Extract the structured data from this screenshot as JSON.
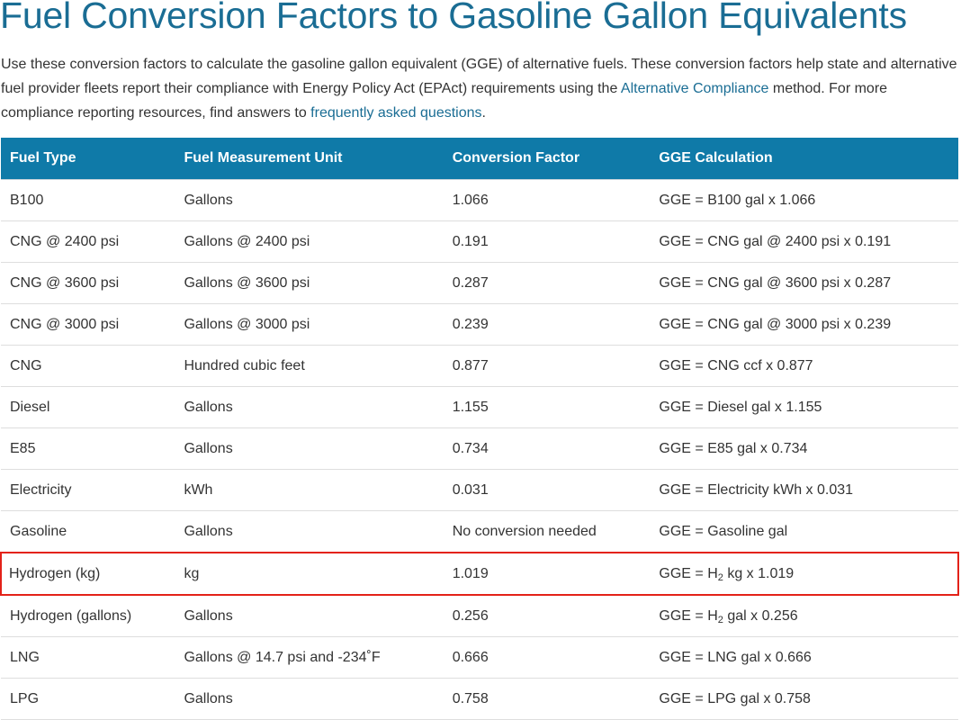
{
  "title": "Fuel Conversion Factors to Gasoline Gallon Equivalents",
  "intro": {
    "text1": "Use these conversion factors to calculate the gasoline gallon equivalent (GGE) of alternative fuels. These conversion factors help state and alternative fuel provider fleets report their compliance with Energy Policy Act (EPAct) requirements using the ",
    "link1": "Alternative Compliance",
    "text2": " method. For more compliance reporting resources, find answers to ",
    "link2": "frequently asked questions",
    "text3": "."
  },
  "table": {
    "headers": [
      "Fuel Type",
      "Fuel Measurement Unit",
      "Conversion Factor",
      "GGE Calculation"
    ],
    "rows": [
      {
        "fuel": "B100",
        "unit": "Gallons",
        "factor": "1.066",
        "calc": "GGE = B100 gal x 1.066"
      },
      {
        "fuel": "CNG @ 2400 psi",
        "unit": "Gallons @ 2400 psi",
        "factor": "0.191",
        "calc": "GGE = CNG gal @ 2400 psi x 0.191"
      },
      {
        "fuel": "CNG @ 3600 psi",
        "unit": "Gallons @ 3600 psi",
        "factor": "0.287",
        "calc": "GGE = CNG gal @ 3600 psi x 0.287"
      },
      {
        "fuel": "CNG @ 3000 psi",
        "unit": "Gallons @ 3000 psi",
        "factor": "0.239",
        "calc": "GGE = CNG gal @ 3000 psi x 0.239"
      },
      {
        "fuel": "CNG",
        "unit": "Hundred cubic feet",
        "factor": "0.877",
        "calc": "GGE = CNG ccf x 0.877"
      },
      {
        "fuel": "Diesel",
        "unit": "Gallons",
        "factor": "1.155",
        "calc": "GGE = Diesel gal x 1.155"
      },
      {
        "fuel": "E85",
        "unit": "Gallons",
        "factor": "0.734",
        "calc": "GGE = E85 gal x 0.734"
      },
      {
        "fuel": "Electricity",
        "unit": "kWh",
        "factor": "0.031",
        "calc": "GGE = Electricity kWh x 0.031"
      },
      {
        "fuel": "Gasoline",
        "unit": "Gallons",
        "factor": "No conversion needed",
        "calc": "GGE = Gasoline gal"
      },
      {
        "fuel": "Hydrogen (kg)",
        "unit": "kg",
        "factor": "1.019",
        "calc_pre": "GGE = H",
        "calc_sub": "2",
        "calc_post": " kg x 1.019",
        "highlighted": true
      },
      {
        "fuel": "Hydrogen (gallons)",
        "unit": "Gallons",
        "factor": "0.256",
        "calc_pre": "GGE = H",
        "calc_sub": "2",
        "calc_post": " gal x 0.256"
      },
      {
        "fuel": "LNG",
        "unit": "Gallons @ 14.7 psi and -234˚F",
        "factor": "0.666",
        "calc": "GGE = LNG gal x 0.666"
      },
      {
        "fuel": "LPG",
        "unit": "Gallons",
        "factor": "0.758",
        "calc": "GGE = LPG gal x 0.758"
      }
    ]
  },
  "colors": {
    "title": "#1a6d94",
    "link": "#1a6d94",
    "header_bg": "#0f7aa8",
    "highlight_border": "#e32219"
  }
}
